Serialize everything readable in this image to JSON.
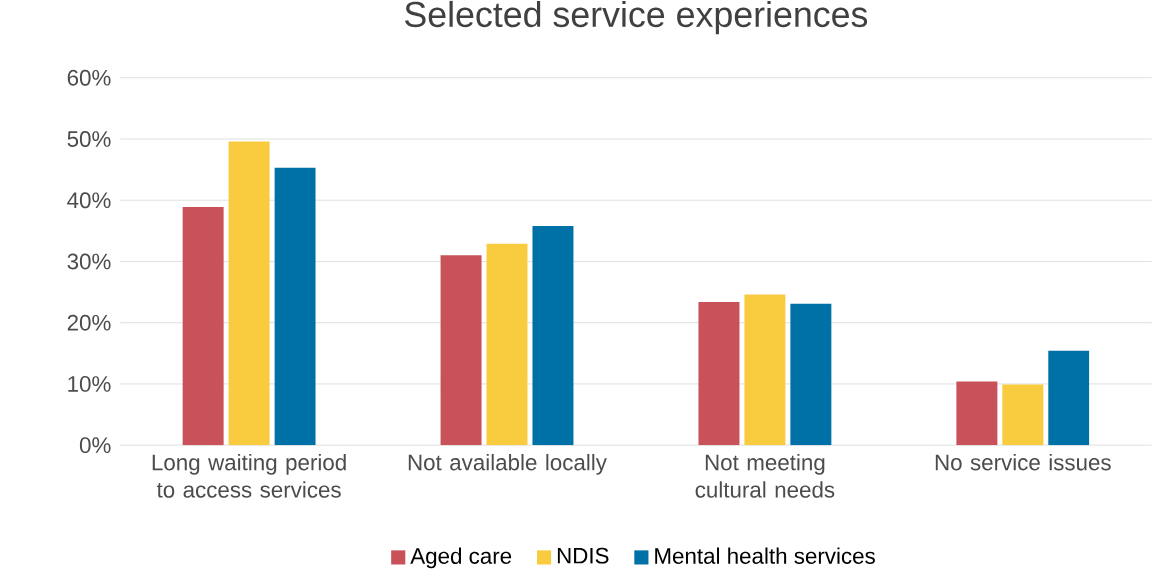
{
  "chart_data": {
    "type": "bar",
    "title": "Selected service experiences",
    "categories": [
      "Long waiting period to access services",
      "Not available locally",
      "Not meeting cultural needs",
      "No service issues"
    ],
    "series": [
      {
        "name": "Aged care",
        "color": "#c9515a",
        "values": [
          38.9,
          31.0,
          23.4,
          10.4
        ]
      },
      {
        "name": "NDIS",
        "color": "#f9cb3e",
        "values": [
          49.6,
          32.9,
          24.6,
          9.9
        ]
      },
      {
        "name": "Mental health services",
        "color": "#0071a6",
        "values": [
          45.3,
          35.8,
          23.1,
          15.4
        ]
      }
    ],
    "ylim": [
      0,
      60
    ],
    "yticks": [
      {
        "value": 0,
        "label": "0%"
      },
      {
        "value": 10,
        "label": "10%"
      },
      {
        "value": 20,
        "label": "20%"
      },
      {
        "value": 30,
        "label": "30%"
      },
      {
        "value": 40,
        "label": "40%"
      },
      {
        "value": 50,
        "label": "50%"
      },
      {
        "value": 60,
        "label": "60%"
      }
    ],
    "grid": "y",
    "legend": "bottom"
  }
}
